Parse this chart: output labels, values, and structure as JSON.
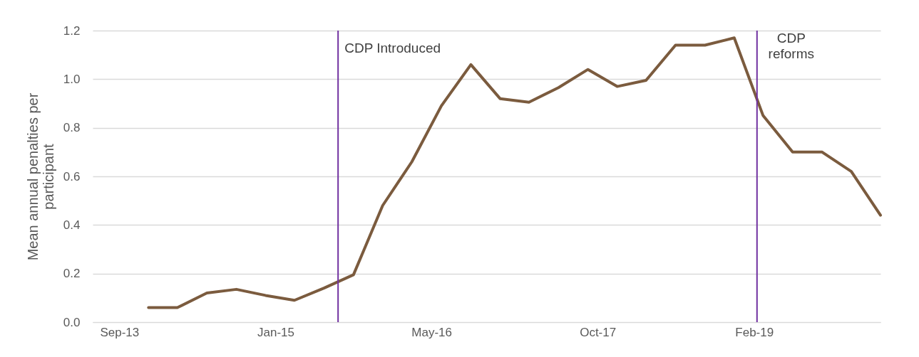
{
  "chart_data": {
    "type": "line",
    "ylabel": "Mean annual penalties per participant",
    "x": [
      "2013-12",
      "2014-03",
      "2014-06",
      "2014-09",
      "2014-12",
      "2015-03",
      "2015-06",
      "2015-09",
      "2015-12",
      "2016-03",
      "2016-06",
      "2016-09",
      "2016-12",
      "2017-03",
      "2017-06",
      "2017-09",
      "2017-12",
      "2018-03",
      "2018-06",
      "2018-09",
      "2018-12",
      "2019-03",
      "2019-06",
      "2019-09",
      "2019-12",
      "2020-03"
    ],
    "series": [
      {
        "color": "#7b5b3e",
        "values": [
          0.06,
          0.06,
          0.12,
          0.135,
          0.11,
          0.09,
          0.14,
          0.195,
          0.48,
          0.66,
          0.89,
          1.06,
          0.92,
          0.905,
          0.965,
          1.04,
          0.97,
          0.995,
          1.14,
          1.14,
          1.17,
          0.85,
          0.7,
          0.7,
          0.62,
          0.44
        ]
      }
    ],
    "xlim": [
      "2013-06-10",
      "2020-03"
    ],
    "xticks": [
      {
        "value": "2013-09",
        "label": "Sep-13"
      },
      {
        "value": "2015-01",
        "label": "Jan-15"
      },
      {
        "value": "2016-05",
        "label": "May-16"
      },
      {
        "value": "2017-10",
        "label": "Oct-17"
      },
      {
        "value": "2019-02",
        "label": "Feb-19"
      }
    ],
    "ylim": [
      0,
      1.2
    ],
    "yticks": [
      {
        "value": 0,
        "label": "0.0"
      },
      {
        "value": 0.2,
        "label": "0.2"
      },
      {
        "value": 0.4,
        "label": "0.4"
      },
      {
        "value": 0.6,
        "label": "0.6"
      },
      {
        "value": 0.8,
        "label": "0.8"
      },
      {
        "value": 1,
        "label": "1.0"
      },
      {
        "value": 1.2,
        "label": "1.2"
      }
    ],
    "grid": "y",
    "legend": false,
    "marker": "none",
    "line_style": "solid",
    "ref_lines": [
      {
        "axis": "x",
        "value": "2015-07-15",
        "label": "CDP Introduced",
        "color": "#7030a0"
      },
      {
        "axis": "x",
        "value": "2019-02-10",
        "label": "CDP reforms",
        "color": "#7030a0"
      }
    ]
  }
}
